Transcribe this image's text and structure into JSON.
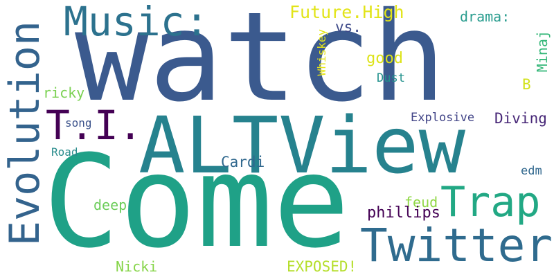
{
  "words": [
    {
      "text": "watch",
      "color": "#3b5a8e"
    },
    {
      "text": "Come",
      "color": "#1fa187"
    },
    {
      "text": "ALTView",
      "color": "#26828e"
    },
    {
      "text": "Twitter",
      "color": "#2f6b8e"
    },
    {
      "text": "Evolution",
      "color": "#33638d"
    },
    {
      "text": "Music:",
      "color": "#2c728e"
    },
    {
      "text": "T.I.",
      "color": "#440154"
    },
    {
      "text": "Trap",
      "color": "#22a884"
    },
    {
      "text": "Future.High",
      "color": "#e2e418"
    },
    {
      "text": "drama:",
      "color": "#2a9d8f"
    },
    {
      "text": "vs.",
      "color": "#3e4a89"
    },
    {
      "text": "Whiskey",
      "color": "#e5e419"
    },
    {
      "text": "good",
      "color": "#dde318"
    },
    {
      "text": "Minaj",
      "color": "#35b779"
    },
    {
      "text": "Dust",
      "color": "#21918c"
    },
    {
      "text": "B",
      "color": "#d2e21b"
    },
    {
      "text": "ricky",
      "color": "#7ad151"
    },
    {
      "text": "song",
      "color": "#3b528b"
    },
    {
      "text": "Explosive",
      "color": "#414487"
    },
    {
      "text": "Diving",
      "color": "#482878"
    },
    {
      "text": "Road",
      "color": "#2a8c8c"
    },
    {
      "text": "Cardi",
      "color": "#30688e"
    },
    {
      "text": "edm",
      "color": "#31688e"
    },
    {
      "text": "feud",
      "color": "#8fd744"
    },
    {
      "text": "deep",
      "color": "#6ccd5a"
    },
    {
      "text": "phillips",
      "color": "#440154"
    },
    {
      "text": "Nicki",
      "color": "#86d549"
    },
    {
      "text": "EXPOSED!",
      "color": "#b5de2b"
    }
  ]
}
